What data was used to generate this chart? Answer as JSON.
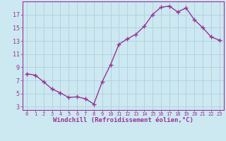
{
  "x": [
    0,
    1,
    2,
    3,
    4,
    5,
    6,
    7,
    8,
    9,
    10,
    11,
    12,
    13,
    14,
    15,
    16,
    17,
    18,
    19,
    20,
    21,
    22,
    23
  ],
  "y": [
    8.0,
    7.8,
    6.8,
    5.7,
    5.1,
    4.4,
    4.5,
    4.2,
    3.4,
    6.8,
    9.4,
    12.5,
    13.3,
    14.0,
    15.2,
    17.0,
    18.1,
    18.3,
    17.4,
    18.0,
    16.2,
    15.0,
    13.6,
    13.1
  ],
  "line_color": "#993399",
  "marker": "+",
  "markersize": 4,
  "markeredgewidth": 1.0,
  "linewidth": 1.0,
  "xlabel": "Windchill (Refroidissement éolien,°C)",
  "xlim": [
    -0.5,
    23.5
  ],
  "ylim": [
    2.5,
    19.0
  ],
  "yticks": [
    3,
    5,
    7,
    9,
    11,
    13,
    15,
    17
  ],
  "xticks": [
    0,
    1,
    2,
    3,
    4,
    5,
    6,
    7,
    8,
    9,
    10,
    11,
    12,
    13,
    14,
    15,
    16,
    17,
    18,
    19,
    20,
    21,
    22,
    23
  ],
  "bg_color": "#cce8f0",
  "grid_color": "#aaccda",
  "spine_color": "#993399",
  "tick_color": "#993399",
  "label_color": "#993399",
  "xlabel_fontsize": 6.5,
  "tick_fontsize_x": 5.0,
  "tick_fontsize_y": 6.0
}
